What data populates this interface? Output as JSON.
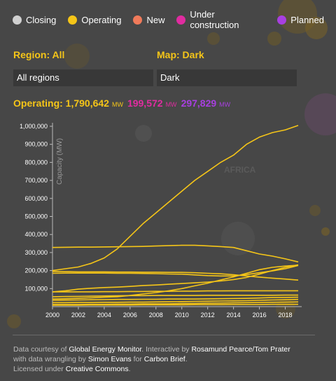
{
  "legend": [
    {
      "label": "Closing",
      "color": "#d0d0d0"
    },
    {
      "label": "Operating",
      "color": "#f5c518"
    },
    {
      "label": "New",
      "color": "#f07a5a"
    },
    {
      "label": "Under construction",
      "color": "#e02ca0"
    },
    {
      "label": "Planned",
      "color": "#a83fe0"
    }
  ],
  "controls": {
    "region_label": "Region: All",
    "region_value": "All regions",
    "map_label": "Map: Dark",
    "map_value": "Dark"
  },
  "totals": {
    "operating_label": "Operating: 1,790,642",
    "operating_unit": "MW",
    "under_construction": "199,572",
    "under_construction_unit": "MW",
    "planned": "297,829",
    "planned_unit": "MW",
    "operating_color": "#f5c518",
    "under_construction_color": "#e02ca0",
    "planned_color": "#a83fe0"
  },
  "map_label": "AFRICA",
  "chart_data": {
    "type": "line",
    "ylabel": "Capacity (MW)",
    "ylim": [
      0,
      1000000
    ],
    "xlim": [
      2000,
      2019
    ],
    "x_ticks": [
      "2000",
      "2002",
      "2004",
      "2006",
      "2008",
      "2010",
      "2012",
      "2014",
      "2016",
      "2018"
    ],
    "y_ticks": [
      "100,000",
      "200,000",
      "300,000",
      "400,000",
      "500,000",
      "600,000",
      "700,000",
      "800,000",
      "900,000",
      "1,000,000"
    ],
    "grid": false,
    "line_color": "#f5c518",
    "x": [
      2000,
      2001,
      2002,
      2003,
      2004,
      2005,
      2006,
      2007,
      2008,
      2009,
      2010,
      2011,
      2012,
      2013,
      2014,
      2015,
      2016,
      2017,
      2018,
      2019
    ],
    "series": [
      {
        "values": [
          200000,
          210000,
          220000,
          240000,
          270000,
          320000,
          390000,
          460000,
          520000,
          580000,
          640000,
          700000,
          750000,
          800000,
          840000,
          900000,
          940000,
          965000,
          980000,
          1005000
        ]
      },
      {
        "values": [
          328000,
          329000,
          330000,
          330000,
          331000,
          332000,
          333000,
          334000,
          336000,
          338000,
          340000,
          340000,
          337000,
          333000,
          328000,
          310000,
          292000,
          280000,
          265000,
          248000
        ]
      },
      {
        "values": [
          195000,
          194000,
          193000,
          193000,
          193000,
          192000,
          192000,
          191000,
          191000,
          190000,
          190000,
          188000,
          185000,
          182000,
          177000,
          170000,
          164000,
          158000,
          153000,
          147000
        ]
      },
      {
        "values": [
          185000,
          186000,
          186000,
          186000,
          186000,
          185000,
          185000,
          184000,
          183000,
          181000,
          180000,
          176000,
          172000,
          170000,
          170000,
          178000,
          188000,
          198000,
          210000,
          228000
        ]
      },
      {
        "values": [
          82000,
          88000,
          97000,
          102000,
          106000,
          108000,
          112000,
          117000,
          120000,
          124000,
          128000,
          132000,
          136000,
          142000,
          150000,
          162000,
          180000,
          200000,
          218000,
          232000
        ]
      },
      {
        "values": [
          42000,
          44000,
          46000,
          49000,
          52000,
          55000,
          62000,
          70000,
          78000,
          88000,
          100000,
          115000,
          130000,
          148000,
          165000,
          185000,
          205000,
          218000,
          225000,
          230000
        ]
      },
      {
        "values": [
          82000,
          82000,
          82000,
          82000,
          83000,
          83000,
          84000,
          84000,
          85000,
          85000,
          86000,
          86000,
          87000,
          87000,
          88000,
          88000,
          88000,
          88000,
          88000,
          88000
        ]
      },
      {
        "values": [
          55000,
          56000,
          57000,
          58000,
          59000,
          60000,
          61000,
          61000,
          62000,
          62000,
          62000,
          62000,
          63000,
          63000,
          63000,
          63000,
          63000,
          63000,
          64000,
          64000
        ]
      },
      {
        "values": [
          35000,
          36000,
          37000,
          38000,
          39000,
          40000,
          40000,
          41000,
          41000,
          42000,
          42000,
          42000,
          43000,
          44000,
          45000,
          46000,
          48000,
          50000,
          51000,
          52000
        ]
      },
      {
        "values": [
          22000,
          22000,
          23000,
          23000,
          24000,
          24000,
          25000,
          25000,
          26000,
          27000,
          28000,
          29000,
          30000,
          31000,
          32000,
          33000,
          35000,
          37000,
          38000,
          40000
        ]
      },
      {
        "values": [
          12000,
          12000,
          12000,
          13000,
          13000,
          14000,
          14000,
          15000,
          15000,
          16000,
          17000,
          18000,
          19000,
          20000,
          21000,
          22000,
          23000,
          24000,
          25000,
          26000
        ]
      },
      {
        "values": [
          8000,
          8000,
          8000,
          9000,
          9000,
          9000,
          9000,
          10000,
          10000,
          10000,
          10000,
          11000,
          11000,
          11000,
          12000,
          12000,
          12000,
          13000,
          13000,
          13000
        ]
      }
    ]
  },
  "footer": {
    "l1_a": "Data courtesy of ",
    "l1_b": "Global Energy Monitor",
    "l1_c": ". Interactive by ",
    "l1_d": "Rosamund Pearce/Tom Prater",
    "l2_a": "with data wrangling by ",
    "l2_b": "Simon Evans",
    "l2_c": " for ",
    "l2_d": "Carbon Brief",
    "l2_e": ".",
    "l3_a": "Licensed under ",
    "l3_b": "Creative Commons",
    "l3_c": "."
  }
}
